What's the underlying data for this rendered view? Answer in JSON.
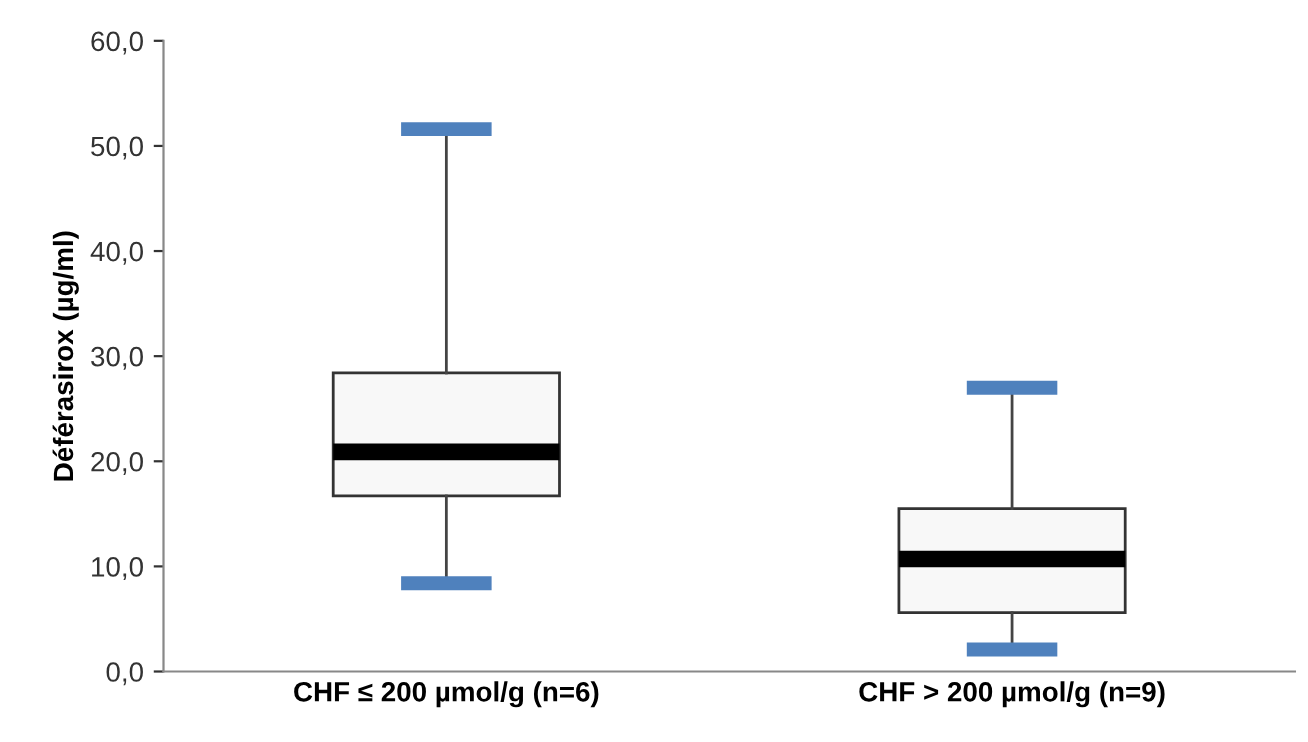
{
  "chart_data": {
    "type": "box",
    "ylabel": "Déférasirox (µg/ml)",
    "categories": [
      "CHF ≤ 200 µmol/g (n=6)",
      "CHF > 200 µmol/g (n=9)"
    ],
    "boxes": [
      {
        "low": 8.4,
        "q1": 16.7,
        "median": 20.9,
        "q3": 28.4,
        "high": 51.6
      },
      {
        "low": 2.1,
        "q1": 5.6,
        "median": 10.7,
        "q3": 15.5,
        "high": 27.0
      }
    ],
    "color": "#f8f8f8",
    "ylim": [
      0,
      60
    ],
    "yticks": [
      {
        "value": 0,
        "label": "0,0"
      },
      {
        "value": 10,
        "label": "10,0"
      },
      {
        "value": 20,
        "label": "20,0"
      },
      {
        "value": 30,
        "label": "30,0"
      },
      {
        "value": 40,
        "label": "40,0"
      },
      {
        "value": 50,
        "label": "50,0"
      },
      {
        "value": 60,
        "label": "60,0"
      }
    ],
    "grid": false
  }
}
